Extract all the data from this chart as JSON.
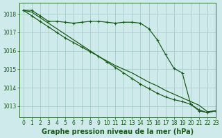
{
  "title": "Graphe pression niveau de la mer (hPa)",
  "background_color": "#ceeaea",
  "grid_color": "#a8cccc",
  "line_color": "#1a5c1a",
  "xlim": [
    -0.5,
    23
  ],
  "ylim": [
    1012.4,
    1018.6
  ],
  "yticks": [
    1013,
    1014,
    1015,
    1016,
    1017,
    1018
  ],
  "xticks": [
    0,
    1,
    2,
    3,
    4,
    5,
    6,
    7,
    8,
    9,
    10,
    11,
    12,
    13,
    14,
    15,
    16,
    17,
    18,
    19,
    20,
    21,
    22,
    23
  ],
  "series": [
    {
      "y": [
        1018.2,
        1018.2,
        1017.9,
        1017.6,
        1017.6,
        1017.55,
        1017.5,
        1017.55,
        1017.6,
        1017.6,
        1017.55,
        1017.5,
        1017.55,
        1017.55,
        1017.5,
        1017.2,
        1016.6,
        1015.8,
        1015.05,
        1014.8,
        1013.1,
        1012.75,
        1012.65,
        1012.75
      ],
      "marker": true
    },
    {
      "y": [
        1018.2,
        1018.1,
        1017.8,
        1017.5,
        1017.2,
        1016.9,
        1016.6,
        1016.3,
        1016.0,
        1015.7,
        1015.45,
        1015.2,
        1015.0,
        1014.8,
        1014.55,
        1014.3,
        1014.1,
        1013.85,
        1013.65,
        1013.45,
        1013.25,
        1013.05,
        1012.7,
        1012.75
      ],
      "marker": false
    },
    {
      "y": [
        1018.2,
        1017.9,
        1017.6,
        1017.3,
        1017.0,
        1016.7,
        1016.45,
        1016.2,
        1015.95,
        1015.7,
        1015.4,
        1015.1,
        1014.8,
        1014.5,
        1014.2,
        1013.95,
        1013.7,
        1013.5,
        1013.35,
        1013.25,
        1013.1,
        1012.8,
        1012.65,
        1012.75
      ],
      "marker": true
    }
  ],
  "marker_size": 3.5,
  "line_width": 0.9,
  "title_fontsize": 7,
  "tick_fontsize": 5.5
}
